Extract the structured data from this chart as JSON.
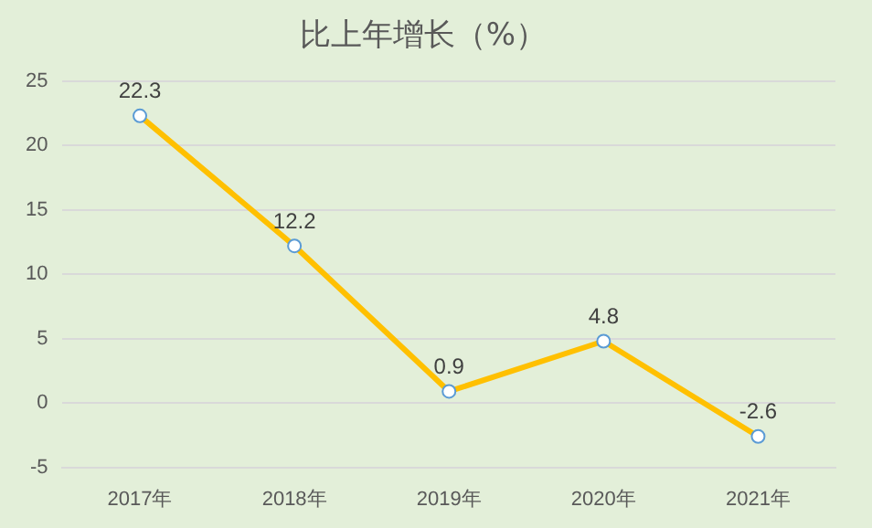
{
  "chart_data": {
    "type": "line",
    "title": "比上年增长（%）",
    "categories": [
      "2017年",
      "2018年",
      "2019年",
      "2020年",
      "2021年"
    ],
    "series": [
      {
        "color": "#ffc000",
        "values": [
          22.3,
          12.2,
          0.9,
          4.8,
          -2.6
        ]
      }
    ],
    "ylim": [
      -5,
      25
    ],
    "yticks": [
      -5,
      0,
      5,
      10,
      15,
      20,
      25
    ],
    "grid": "y",
    "marker": "circle",
    "line_style": "solid",
    "data_labels": true,
    "legend": false
  }
}
